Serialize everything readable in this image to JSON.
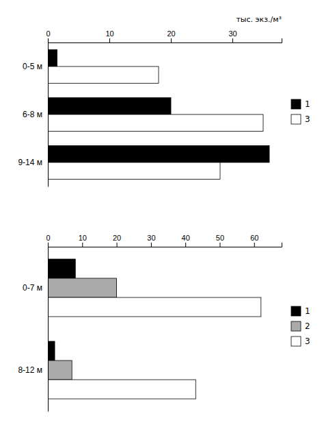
{
  "chart_data": [
    {
      "type": "bar",
      "orientation": "horizontal",
      "categories": [
        "0-5 м",
        "6-8 м",
        "9-14 м"
      ],
      "series": [
        {
          "name": "1",
          "color": "#000000",
          "values": [
            1.5,
            20,
            36
          ]
        },
        {
          "name": "3",
          "color": "#ffffff",
          "values": [
            18,
            35,
            28
          ]
        }
      ],
      "xlim": [
        0,
        38
      ],
      "xticks": [
        0,
        10,
        20,
        30
      ],
      "xlabel": "тыс. экз./м³",
      "legend": "right",
      "grid": false
    },
    {
      "type": "bar",
      "orientation": "horizontal",
      "categories": [
        "0-7 м",
        "8-12 м"
      ],
      "series": [
        {
          "name": "1",
          "color": "#000000",
          "values": [
            8,
            2
          ]
        },
        {
          "name": "2",
          "color": "#aaaaaa",
          "values": [
            20,
            7
          ]
        },
        {
          "name": "3",
          "color": "#ffffff",
          "values": [
            62,
            43
          ]
        }
      ],
      "xlim": [
        0,
        68
      ],
      "xticks": [
        0,
        10,
        20,
        30,
        40,
        50,
        60
      ],
      "legend": "right",
      "grid": false
    }
  ]
}
